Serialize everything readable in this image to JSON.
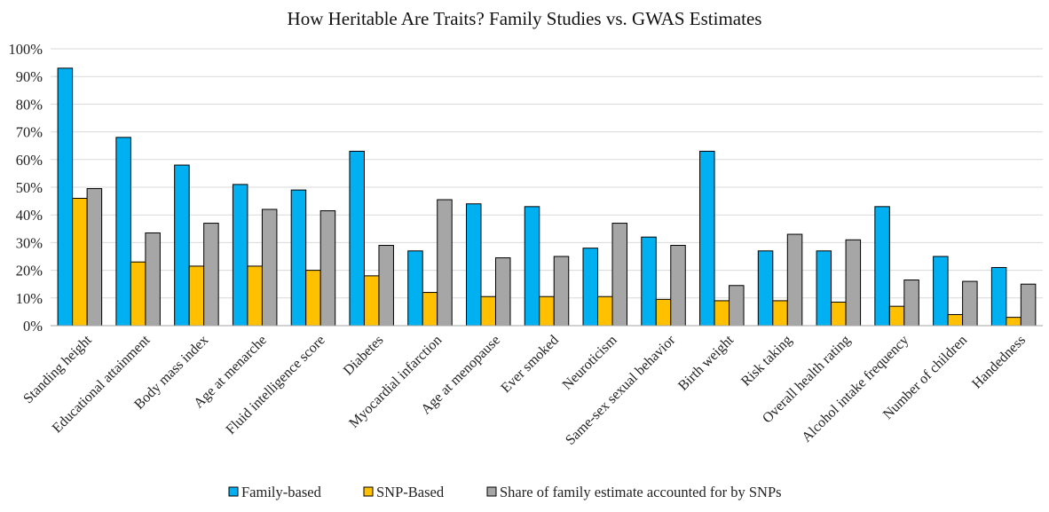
{
  "chart_data": {
    "type": "bar",
    "title": "How Heritable Are Traits? Family Studies vs. GWAS Estimates",
    "ylim": [
      0,
      100
    ],
    "yticks": [
      "0%",
      "10%",
      "20%",
      "30%",
      "40%",
      "50%",
      "60%",
      "70%",
      "80%",
      "90%",
      "100%"
    ],
    "ytick_values": [
      0,
      10,
      20,
      30,
      40,
      50,
      60,
      70,
      80,
      90,
      100
    ],
    "grid": true,
    "legend_position": "bottom",
    "categories": [
      "Standing height",
      "Educational attainment",
      "Body mass index",
      "Age at menarche",
      "Fluid intelligence score",
      "Diabetes",
      "Myocardial infarction",
      "Age at menopause",
      "Ever smoked",
      "Neuroticism",
      "Same-sex sexual behavior",
      "Birth weight",
      "Risk taking",
      "Overall health rating",
      "Alcohol intake frequency",
      "Number of children",
      "Handedness"
    ],
    "series": [
      {
        "name": "Family-based",
        "color": "#00b0f0",
        "values": [
          93,
          68,
          58,
          51,
          49,
          63,
          27,
          44,
          43,
          28,
          32,
          63,
          27,
          27,
          43,
          25,
          21
        ]
      },
      {
        "name": "SNP-Based",
        "color": "#ffc000",
        "values": [
          46,
          23,
          21.5,
          21.5,
          20,
          18,
          12,
          10.5,
          10.5,
          10.5,
          9.5,
          9,
          9,
          8.5,
          7,
          4,
          3
        ]
      },
      {
        "name": "Share of family estimate accounted for by SNPs",
        "color": "#a6a6a6",
        "values": [
          49.5,
          33.5,
          37,
          42,
          41.5,
          29,
          45.5,
          24.5,
          25,
          37,
          29,
          14.5,
          33,
          31,
          16.5,
          16,
          15
        ]
      }
    ]
  }
}
